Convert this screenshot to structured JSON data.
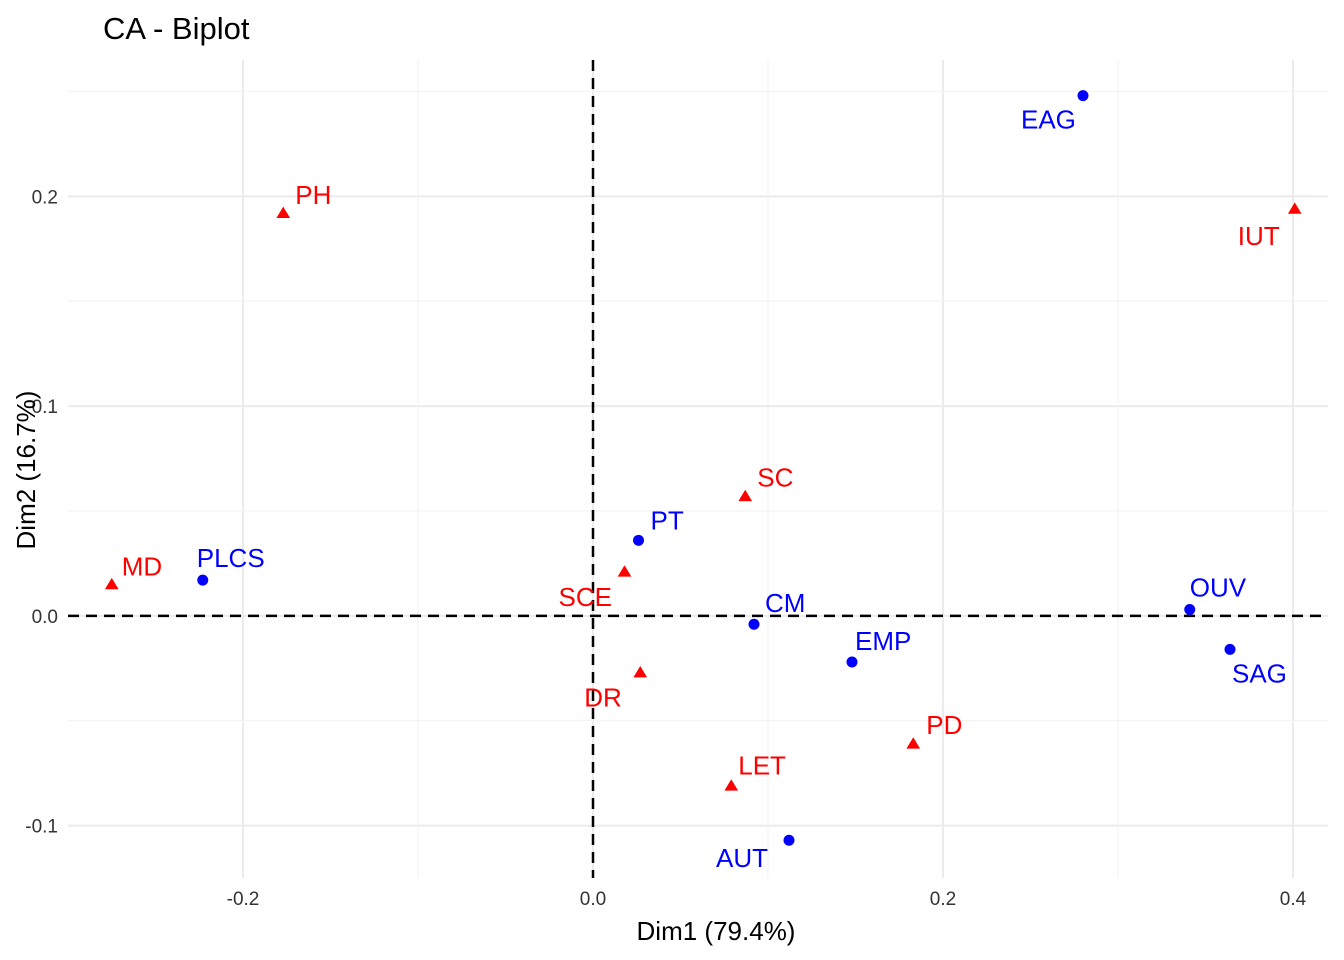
{
  "chart_data": {
    "type": "scatter",
    "title": "CA - Biplot",
    "xlabel": "Dim1 (79.4%)",
    "ylabel": "Dim2 (16.7%)",
    "xlim": [
      -0.3,
      0.42
    ],
    "ylim": [
      -0.125,
      0.265
    ],
    "x_ticks": [
      -0.2,
      0.0,
      0.2,
      0.4
    ],
    "x_tick_labels": [
      "-0.2",
      "0.0",
      "0.2",
      "0.4"
    ],
    "y_ticks": [
      -0.1,
      0.0,
      0.1,
      0.2
    ],
    "y_tick_labels": [
      "-0.1",
      "0.0",
      "0.1",
      "0.2"
    ],
    "grid": true,
    "reference_lines": {
      "x": 0,
      "y": 0,
      "style": "dashed"
    },
    "colors": {
      "rows": "#0000ff",
      "cols": "#ff0000"
    },
    "series": [
      {
        "marker": "circle",
        "color": "#0000ff",
        "points": [
          {
            "label": "EAG",
            "x": 0.28,
            "y": 0.248
          },
          {
            "label": "PLCS",
            "x": -0.223,
            "y": 0.017
          },
          {
            "label": "PT",
            "x": 0.026,
            "y": 0.036
          },
          {
            "label": "CM",
            "x": 0.092,
            "y": -0.004
          },
          {
            "label": "EMP",
            "x": 0.148,
            "y": -0.022
          },
          {
            "label": "OUV",
            "x": 0.341,
            "y": 0.003
          },
          {
            "label": "SAG",
            "x": 0.364,
            "y": -0.016
          },
          {
            "label": "AUT",
            "x": 0.112,
            "y": -0.107
          }
        ]
      },
      {
        "marker": "triangle",
        "color": "#ff0000",
        "points": [
          {
            "label": "PH",
            "x": -0.177,
            "y": 0.192
          },
          {
            "label": "IUT",
            "x": 0.401,
            "y": 0.194
          },
          {
            "label": "MD",
            "x": -0.275,
            "y": 0.015
          },
          {
            "label": "SC",
            "x": 0.087,
            "y": 0.057
          },
          {
            "label": "SCE",
            "x": 0.018,
            "y": 0.021
          },
          {
            "label": "DR",
            "x": 0.027,
            "y": -0.027
          },
          {
            "label": "PD",
            "x": 0.183,
            "y": -0.061
          },
          {
            "label": "LET",
            "x": 0.079,
            "y": -0.081
          }
        ]
      }
    ]
  }
}
